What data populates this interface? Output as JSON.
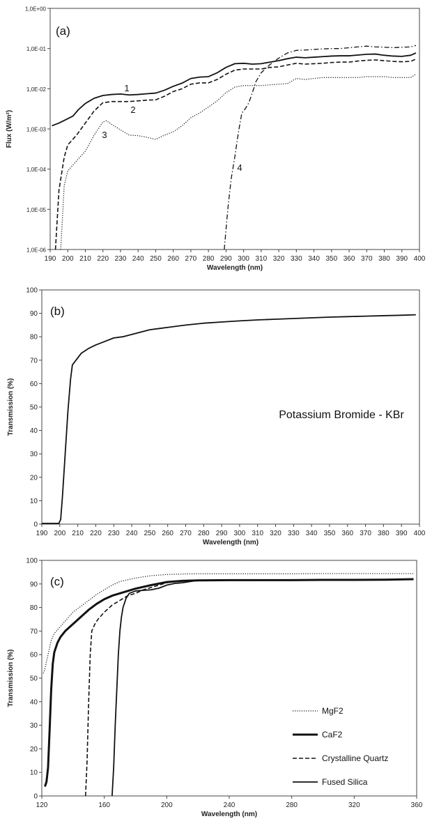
{
  "chart_data": [
    {
      "type": "line",
      "panel_label": "(a)",
      "xlabel": "Wavelength (nm)",
      "ylabel": "Flux (W/m²)",
      "y_scale": "log",
      "xlim": [
        190,
        400
      ],
      "ylim": [
        1e-06,
        1
      ],
      "x_ticks": [
        190,
        200,
        210,
        220,
        230,
        240,
        250,
        260,
        270,
        280,
        290,
        300,
        310,
        320,
        330,
        340,
        350,
        360,
        370,
        380,
        390,
        400
      ],
      "x_tick_labels": [
        "190",
        "200",
        "210",
        "220",
        "230",
        "240",
        "250",
        "260",
        "270",
        "280",
        "290",
        "300",
        "310",
        "320",
        "330",
        "340",
        "350",
        "360",
        "370",
        "380",
        "390",
        "400"
      ],
      "y_ticks": [
        1e-06,
        1e-05,
        0.0001,
        0.001,
        0.01,
        0.1,
        1
      ],
      "y_tick_labels": [
        "1,0E-06",
        "1,0E-05",
        "1,0E-04",
        "1,0E-03",
        "1,0E-02",
        "1,0E-01",
        "1,0E+00"
      ],
      "series": [
        {
          "curve_label": "1",
          "style": "solid",
          "x": [
            191,
            195,
            200,
            203,
            206,
            210,
            215,
            220,
            225,
            230,
            235,
            240,
            245,
            250,
            255,
            260,
            265,
            270,
            275,
            280,
            285,
            290,
            295,
            300,
            305,
            310,
            315,
            320,
            325,
            330,
            335,
            340,
            345,
            350,
            355,
            360,
            365,
            370,
            375,
            380,
            385,
            390,
            395,
            398
          ],
          "y": [
            0.0012,
            0.0014,
            0.0018,
            0.0021,
            0.003,
            0.0043,
            0.0058,
            0.0068,
            0.0072,
            0.0074,
            0.007,
            0.0072,
            0.0075,
            0.0078,
            0.0092,
            0.0115,
            0.0138,
            0.018,
            0.0195,
            0.02,
            0.025,
            0.034,
            0.042,
            0.043,
            0.041,
            0.042,
            0.046,
            0.05,
            0.056,
            0.061,
            0.059,
            0.061,
            0.063,
            0.065,
            0.066,
            0.066,
            0.069,
            0.072,
            0.073,
            0.068,
            0.065,
            0.064,
            0.068,
            0.078
          ]
        },
        {
          "curve_label": "2",
          "style": "dashed",
          "x": [
            193,
            195,
            198,
            200,
            205,
            210,
            215,
            220,
            225,
            230,
            235,
            240,
            245,
            250,
            255,
            260,
            265,
            270,
            275,
            280,
            285,
            290,
            295,
            300,
            305,
            310,
            315,
            320,
            325,
            330,
            335,
            340,
            345,
            350,
            355,
            360,
            365,
            370,
            375,
            380,
            385,
            390,
            395,
            398
          ],
          "y": [
            1e-06,
            3e-05,
            0.0002,
            0.0004,
            0.0007,
            0.0014,
            0.0028,
            0.0045,
            0.0048,
            0.0048,
            0.0048,
            0.005,
            0.0052,
            0.0053,
            0.0065,
            0.0085,
            0.01,
            0.013,
            0.014,
            0.014,
            0.017,
            0.023,
            0.029,
            0.031,
            0.031,
            0.031,
            0.034,
            0.035,
            0.039,
            0.043,
            0.041,
            0.042,
            0.043,
            0.045,
            0.046,
            0.046,
            0.049,
            0.051,
            0.052,
            0.05,
            0.048,
            0.047,
            0.048,
            0.055
          ]
        },
        {
          "curve_label": "3",
          "style": "dotted",
          "x": [
            196,
            198,
            200,
            205,
            210,
            215,
            220,
            222,
            225,
            230,
            235,
            240,
            245,
            250,
            255,
            260,
            265,
            270,
            275,
            280,
            285,
            290,
            295,
            300,
            305,
            310,
            315,
            320,
            325,
            330,
            335,
            340,
            345,
            350,
            355,
            360,
            365,
            370,
            375,
            380,
            385,
            390,
            395,
            398
          ],
          "y": [
            1e-06,
            4e-05,
            9e-05,
            0.00016,
            0.00028,
            0.0007,
            0.0015,
            0.0016,
            0.0013,
            0.00095,
            0.0007,
            0.00068,
            0.00062,
            0.00055,
            0.0007,
            0.00085,
            0.0012,
            0.0019,
            0.0025,
            0.0035,
            0.005,
            0.008,
            0.011,
            0.012,
            0.012,
            0.012,
            0.0125,
            0.013,
            0.0135,
            0.018,
            0.017,
            0.018,
            0.019,
            0.019,
            0.019,
            0.019,
            0.019,
            0.02,
            0.02,
            0.02,
            0.019,
            0.019,
            0.019,
            0.023
          ]
        },
        {
          "curve_label": "4",
          "style": "dashdot",
          "x": [
            289,
            291,
            293,
            295,
            297,
            299,
            301,
            303,
            305,
            307,
            310,
            315,
            320,
            325,
            330,
            335,
            340,
            345,
            350,
            355,
            360,
            365,
            370,
            375,
            380,
            385,
            390,
            395,
            398
          ],
          "y": [
            1e-06,
            1e-05,
            6e-05,
            0.0002,
            0.0008,
            0.0025,
            0.0032,
            0.0045,
            0.008,
            0.015,
            0.025,
            0.04,
            0.058,
            0.078,
            0.09,
            0.092,
            0.095,
            0.098,
            0.1,
            0.1,
            0.105,
            0.11,
            0.115,
            0.11,
            0.108,
            0.105,
            0.108,
            0.11,
            0.12
          ]
        }
      ]
    },
    {
      "type": "line",
      "panel_label": "(b)",
      "xlabel": "Wavelength (nm)",
      "ylabel": "Transmission (%)",
      "annotation": "Potassium Bromide - KBr",
      "xlim": [
        190,
        400
      ],
      "ylim": [
        0,
        100
      ],
      "x_ticks": [
        190,
        200,
        210,
        220,
        230,
        240,
        250,
        260,
        270,
        280,
        290,
        300,
        310,
        320,
        330,
        340,
        350,
        360,
        370,
        380,
        390,
        400
      ],
      "x_tick_labels": [
        "190",
        "200",
        "210",
        "220",
        "230",
        "240",
        "250",
        "260",
        "270",
        "280",
        "290",
        "300",
        "310",
        "320",
        "330",
        "340",
        "350",
        "360",
        "370",
        "380",
        "390",
        "400"
      ],
      "y_ticks": [
        0,
        10,
        20,
        30,
        40,
        50,
        60,
        70,
        80,
        90,
        100
      ],
      "y_tick_labels": [
        "0",
        "10",
        "20",
        "30",
        "40",
        "50",
        "60",
        "70",
        "80",
        "90",
        "100"
      ],
      "series": [
        {
          "style": "solid",
          "x": [
            190,
            195,
            199.5,
            200.5,
            201.5,
            203,
            204.5,
            206,
            207,
            209,
            212,
            216,
            220,
            225,
            230,
            235,
            240,
            245,
            250,
            255,
            260,
            270,
            280,
            290,
            300,
            310,
            320,
            330,
            340,
            350,
            360,
            370,
            380,
            390,
            398
          ],
          "y": [
            0.3,
            0.3,
            0.3,
            2,
            12,
            30,
            48,
            62,
            68,
            70,
            73,
            75,
            76.5,
            78,
            79.5,
            80,
            81,
            82,
            83,
            83.5,
            84,
            85,
            85.8,
            86.3,
            86.8,
            87.2,
            87.5,
            87.8,
            88.1,
            88.4,
            88.6,
            88.8,
            89,
            89.2,
            89.4
          ]
        }
      ]
    },
    {
      "type": "line",
      "panel_label": "(c)",
      "xlabel": "Wavelength (nm)",
      "ylabel": "Transmission (%)",
      "xlim": [
        120,
        360
      ],
      "ylim": [
        0,
        100
      ],
      "x_ticks": [
        120,
        160,
        200,
        240,
        280,
        320,
        360
      ],
      "x_tick_labels": [
        "120",
        "160",
        "200",
        "240",
        "280",
        "320",
        "360"
      ],
      "y_ticks": [
        0,
        10,
        20,
        30,
        40,
        50,
        60,
        70,
        80,
        90,
        100
      ],
      "y_tick_labels": [
        "0",
        "10",
        "20",
        "30",
        "40",
        "50",
        "60",
        "70",
        "80",
        "90",
        "100"
      ],
      "legend_position": "bottom-right",
      "series": [
        {
          "name": "MgF2",
          "style": "dotted",
          "x": [
            121,
            122,
            124,
            126,
            128,
            132,
            136,
            140,
            145,
            150,
            155,
            160,
            165,
            170,
            180,
            190,
            200,
            210,
            220,
            240,
            260,
            280,
            300,
            320,
            340,
            358
          ],
          "y": [
            52,
            54,
            60,
            66,
            69,
            72,
            75,
            78,
            80.5,
            83,
            85.5,
            87.5,
            89.5,
            91,
            92.5,
            93.5,
            94,
            94.2,
            94.3,
            94.3,
            94.3,
            94.3,
            94.4,
            94.4,
            94.4,
            94.4
          ]
        },
        {
          "name": "CaF2",
          "style": "thick",
          "x": [
            122,
            123,
            124,
            125,
            126,
            127,
            128,
            130,
            132,
            135,
            140,
            145,
            150,
            155,
            160,
            165,
            170,
            175,
            180,
            190,
            200,
            210,
            220,
            240,
            260,
            280,
            300,
            320,
            340,
            358
          ],
          "y": [
            4,
            6,
            12,
            28,
            45,
            56,
            61,
            65,
            67.5,
            70,
            73,
            76,
            79,
            81.5,
            83.5,
            85,
            86,
            87,
            88,
            89.5,
            90.8,
            91.3,
            91.5,
            91.6,
            91.6,
            91.6,
            91.7,
            91.7,
            91.8,
            92
          ]
        },
        {
          "name": "Crystalline Quartz",
          "style": "dashed",
          "x": [
            148,
            149,
            150,
            151,
            152,
            154,
            156,
            160,
            165,
            170,
            175,
            180,
            185,
            190,
            195,
            200,
            205,
            210,
            220,
            240,
            260,
            280,
            300,
            320,
            340,
            358
          ],
          "y": [
            0,
            15,
            40,
            60,
            70,
            73,
            75,
            78,
            81,
            83,
            85,
            86,
            87.5,
            88.5,
            89.5,
            90.5,
            91,
            91.3,
            91.5,
            91.6,
            91.6,
            91.7,
            91.7,
            91.8,
            91.8,
            92
          ]
        },
        {
          "name": "Fused Silica",
          "style": "solid",
          "x": [
            165,
            166,
            167,
            168,
            169,
            170,
            171,
            172,
            174,
            176,
            180,
            185,
            190,
            195,
            200,
            205,
            210,
            215,
            220,
            240,
            260,
            280,
            300,
            320,
            340,
            358
          ],
          "y": [
            0,
            12,
            30,
            45,
            60,
            70,
            76,
            80,
            84,
            86,
            87,
            87.3,
            87.5,
            88.2,
            89.5,
            90.2,
            90.5,
            91,
            91.5,
            91.6,
            91.6,
            91.7,
            91.7,
            91.8,
            91.8,
            92
          ]
        }
      ]
    }
  ]
}
